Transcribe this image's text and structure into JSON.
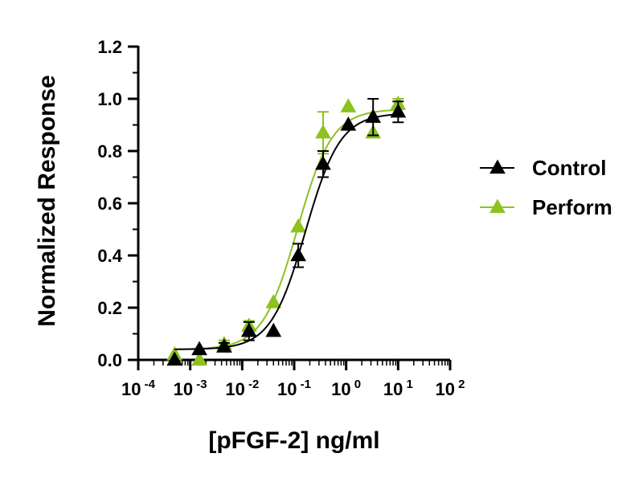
{
  "chart_data": {
    "type": "scatter",
    "xlabel": "[pFGF-2] ng/ml",
    "ylabel": "Normalized Response",
    "x_scale": "log10",
    "xlim": [
      0.0001,
      100
    ],
    "ylim": [
      0,
      1.2
    ],
    "x_ticks": [
      {
        "value": 0.0001,
        "base": "10",
        "exp": "-4"
      },
      {
        "value": 0.001,
        "base": "10",
        "exp": "-3"
      },
      {
        "value": 0.01,
        "base": "10",
        "exp": "-2"
      },
      {
        "value": 0.1,
        "base": "10",
        "exp": "-1"
      },
      {
        "value": 1,
        "base": "10",
        "exp": "0"
      },
      {
        "value": 10,
        "base": "10",
        "exp": "1"
      },
      {
        "value": 100,
        "base": "10",
        "exp": "2"
      }
    ],
    "y_ticks": [
      "0.0",
      "0.2",
      "0.4",
      "0.6",
      "0.8",
      "1.0",
      "1.2"
    ],
    "grid": false,
    "legend_position": "right",
    "series": [
      {
        "name": "Control",
        "color": "#000000",
        "marker": "triangle",
        "points": [
          {
            "x": 0.0005,
            "y": 0.0,
            "err": 0.0
          },
          {
            "x": 0.0015,
            "y": 0.04,
            "err": 0.0
          },
          {
            "x": 0.0045,
            "y": 0.05,
            "err": 0.015
          },
          {
            "x": 0.0135,
            "y": 0.11,
            "err": 0.035
          },
          {
            "x": 0.04,
            "y": 0.11,
            "err": 0.0
          },
          {
            "x": 0.12,
            "y": 0.4,
            "err": 0.045
          },
          {
            "x": 0.36,
            "y": 0.75,
            "err": 0.05
          },
          {
            "x": 1.1,
            "y": 0.9,
            "err": 0.0
          },
          {
            "x": 3.3,
            "y": 0.93,
            "err": 0.07
          },
          {
            "x": 10,
            "y": 0.95,
            "err": 0.04
          }
        ],
        "fit": {
          "bottom": 0.04,
          "top": 0.945,
          "ec50": 0.165,
          "hill": 1.3
        }
      },
      {
        "name": "Perform",
        "color": "#8dc21f",
        "marker": "triangle",
        "points": [
          {
            "x": 0.0005,
            "y": 0.02,
            "err": 0.0
          },
          {
            "x": 0.0015,
            "y": 0.0,
            "err": 0.0
          },
          {
            "x": 0.0045,
            "y": 0.06,
            "err": 0.015
          },
          {
            "x": 0.0135,
            "y": 0.13,
            "err": 0.02
          },
          {
            "x": 0.04,
            "y": 0.22,
            "err": 0.0
          },
          {
            "x": 0.12,
            "y": 0.51,
            "err": 0.0
          },
          {
            "x": 0.36,
            "y": 0.87,
            "err": 0.08
          },
          {
            "x": 1.1,
            "y": 0.97,
            "err": 0.0
          },
          {
            "x": 3.3,
            "y": 0.87,
            "err": 0.0
          },
          {
            "x": 10,
            "y": 0.98,
            "err": 0.02
          }
        ],
        "fit": {
          "bottom": 0.04,
          "top": 0.96,
          "ec50": 0.115,
          "hill": 1.3
        }
      }
    ]
  }
}
